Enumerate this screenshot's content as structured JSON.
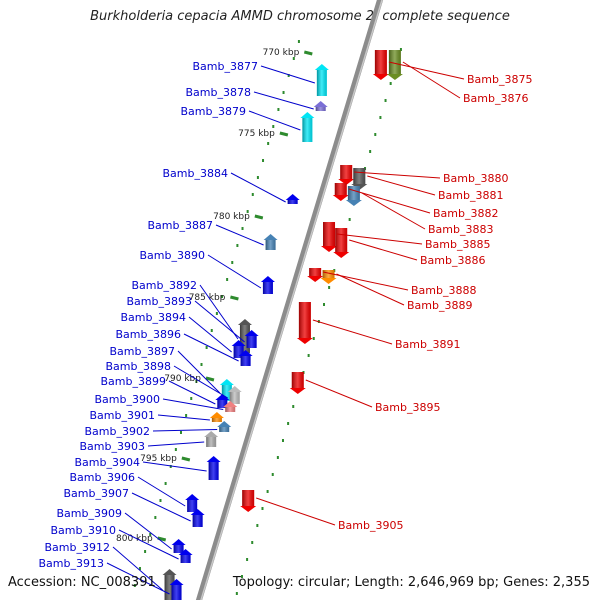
{
  "title": "Burkholderia cepacia AMMD chromosome 2, complete sequence",
  "accession": "Accession: NC_008391",
  "summary": "Topology: circular; Length: 2,646,969 bp; Genes: 2,355",
  "colors": {
    "left_label": "#0000cc",
    "right_label": "#cc0000",
    "backbone": "#8c8c8c"
  },
  "ticks": [
    {
      "label": "770 kbp"
    },
    {
      "label": "775 kbp"
    },
    {
      "label": "780 kbp"
    },
    {
      "label": "785 kbp"
    },
    {
      "label": "790 kbp"
    },
    {
      "label": "795 kbp"
    },
    {
      "label": "800 kbp"
    }
  ],
  "left_genes": [
    {
      "label": "Bamb_3877",
      "color": "#00e5f5"
    },
    {
      "label": "Bamb_3878",
      "color": "#7b6fd6"
    },
    {
      "label": "Bamb_3879",
      "color": "#00e5f5"
    },
    {
      "label": "Bamb_3884",
      "color": "#0000ee"
    },
    {
      "label": "Bamb_3887",
      "color": "#4682b4"
    },
    {
      "label": "Bamb_3890",
      "color": "#0000ee"
    },
    {
      "label": "Bamb_3892",
      "color": "#555555"
    },
    {
      "label": "Bamb_3893",
      "color": "#0000ee"
    },
    {
      "label": "Bamb_3894",
      "color": "#0000ee"
    },
    {
      "label": "Bamb_3896",
      "color": "#0000ee"
    },
    {
      "label": "Bamb_3897",
      "color": "#00e5f5"
    },
    {
      "label": "Bamb_3898",
      "color": "#bbbbbb"
    },
    {
      "label": "Bamb_3899",
      "color": "#0000ee"
    },
    {
      "label": "Bamb_3900",
      "color": "#f08080"
    },
    {
      "label": "Bamb_3901",
      "color": "#ff8c00"
    },
    {
      "label": "Bamb_3902",
      "color": "#4682b4"
    },
    {
      "label": "Bamb_3903",
      "color": "#aaaaaa"
    },
    {
      "label": "Bamb_3904",
      "color": "#0000ee"
    },
    {
      "label": "Bamb_3906",
      "color": "#0000ee"
    },
    {
      "label": "Bamb_3907",
      "color": "#0000ee"
    },
    {
      "label": "Bamb_3909",
      "color": "#0000ee"
    },
    {
      "label": "Bamb_3910",
      "color": "#0000ee"
    },
    {
      "label": "Bamb_3912",
      "color": "#555555"
    },
    {
      "label": "Bamb_3913",
      "color": "#0000ee"
    }
  ],
  "right_genes": [
    {
      "label": "Bamb_3875",
      "color": "#ee0000"
    },
    {
      "label": "Bamb_3876",
      "color": "#6b8e23"
    },
    {
      "label": "Bamb_3880",
      "color": "#ee0000"
    },
    {
      "label": "Bamb_3881",
      "color": "#555555"
    },
    {
      "label": "Bamb_3882",
      "color": "#ee0000"
    },
    {
      "label": "Bamb_3883",
      "color": "#4682b4"
    },
    {
      "label": "Bamb_3885",
      "color": "#ee0000"
    },
    {
      "label": "Bamb_3886",
      "color": "#ee0000"
    },
    {
      "label": "Bamb_3888",
      "color": "#ee0000"
    },
    {
      "label": "Bamb_3889",
      "color": "#ff8c00"
    },
    {
      "label": "Bamb_3891",
      "color": "#ee0000"
    },
    {
      "label": "Bamb_3895",
      "color": "#ee0000"
    },
    {
      "label": "Bamb_3905",
      "color": "#ee0000"
    }
  ]
}
